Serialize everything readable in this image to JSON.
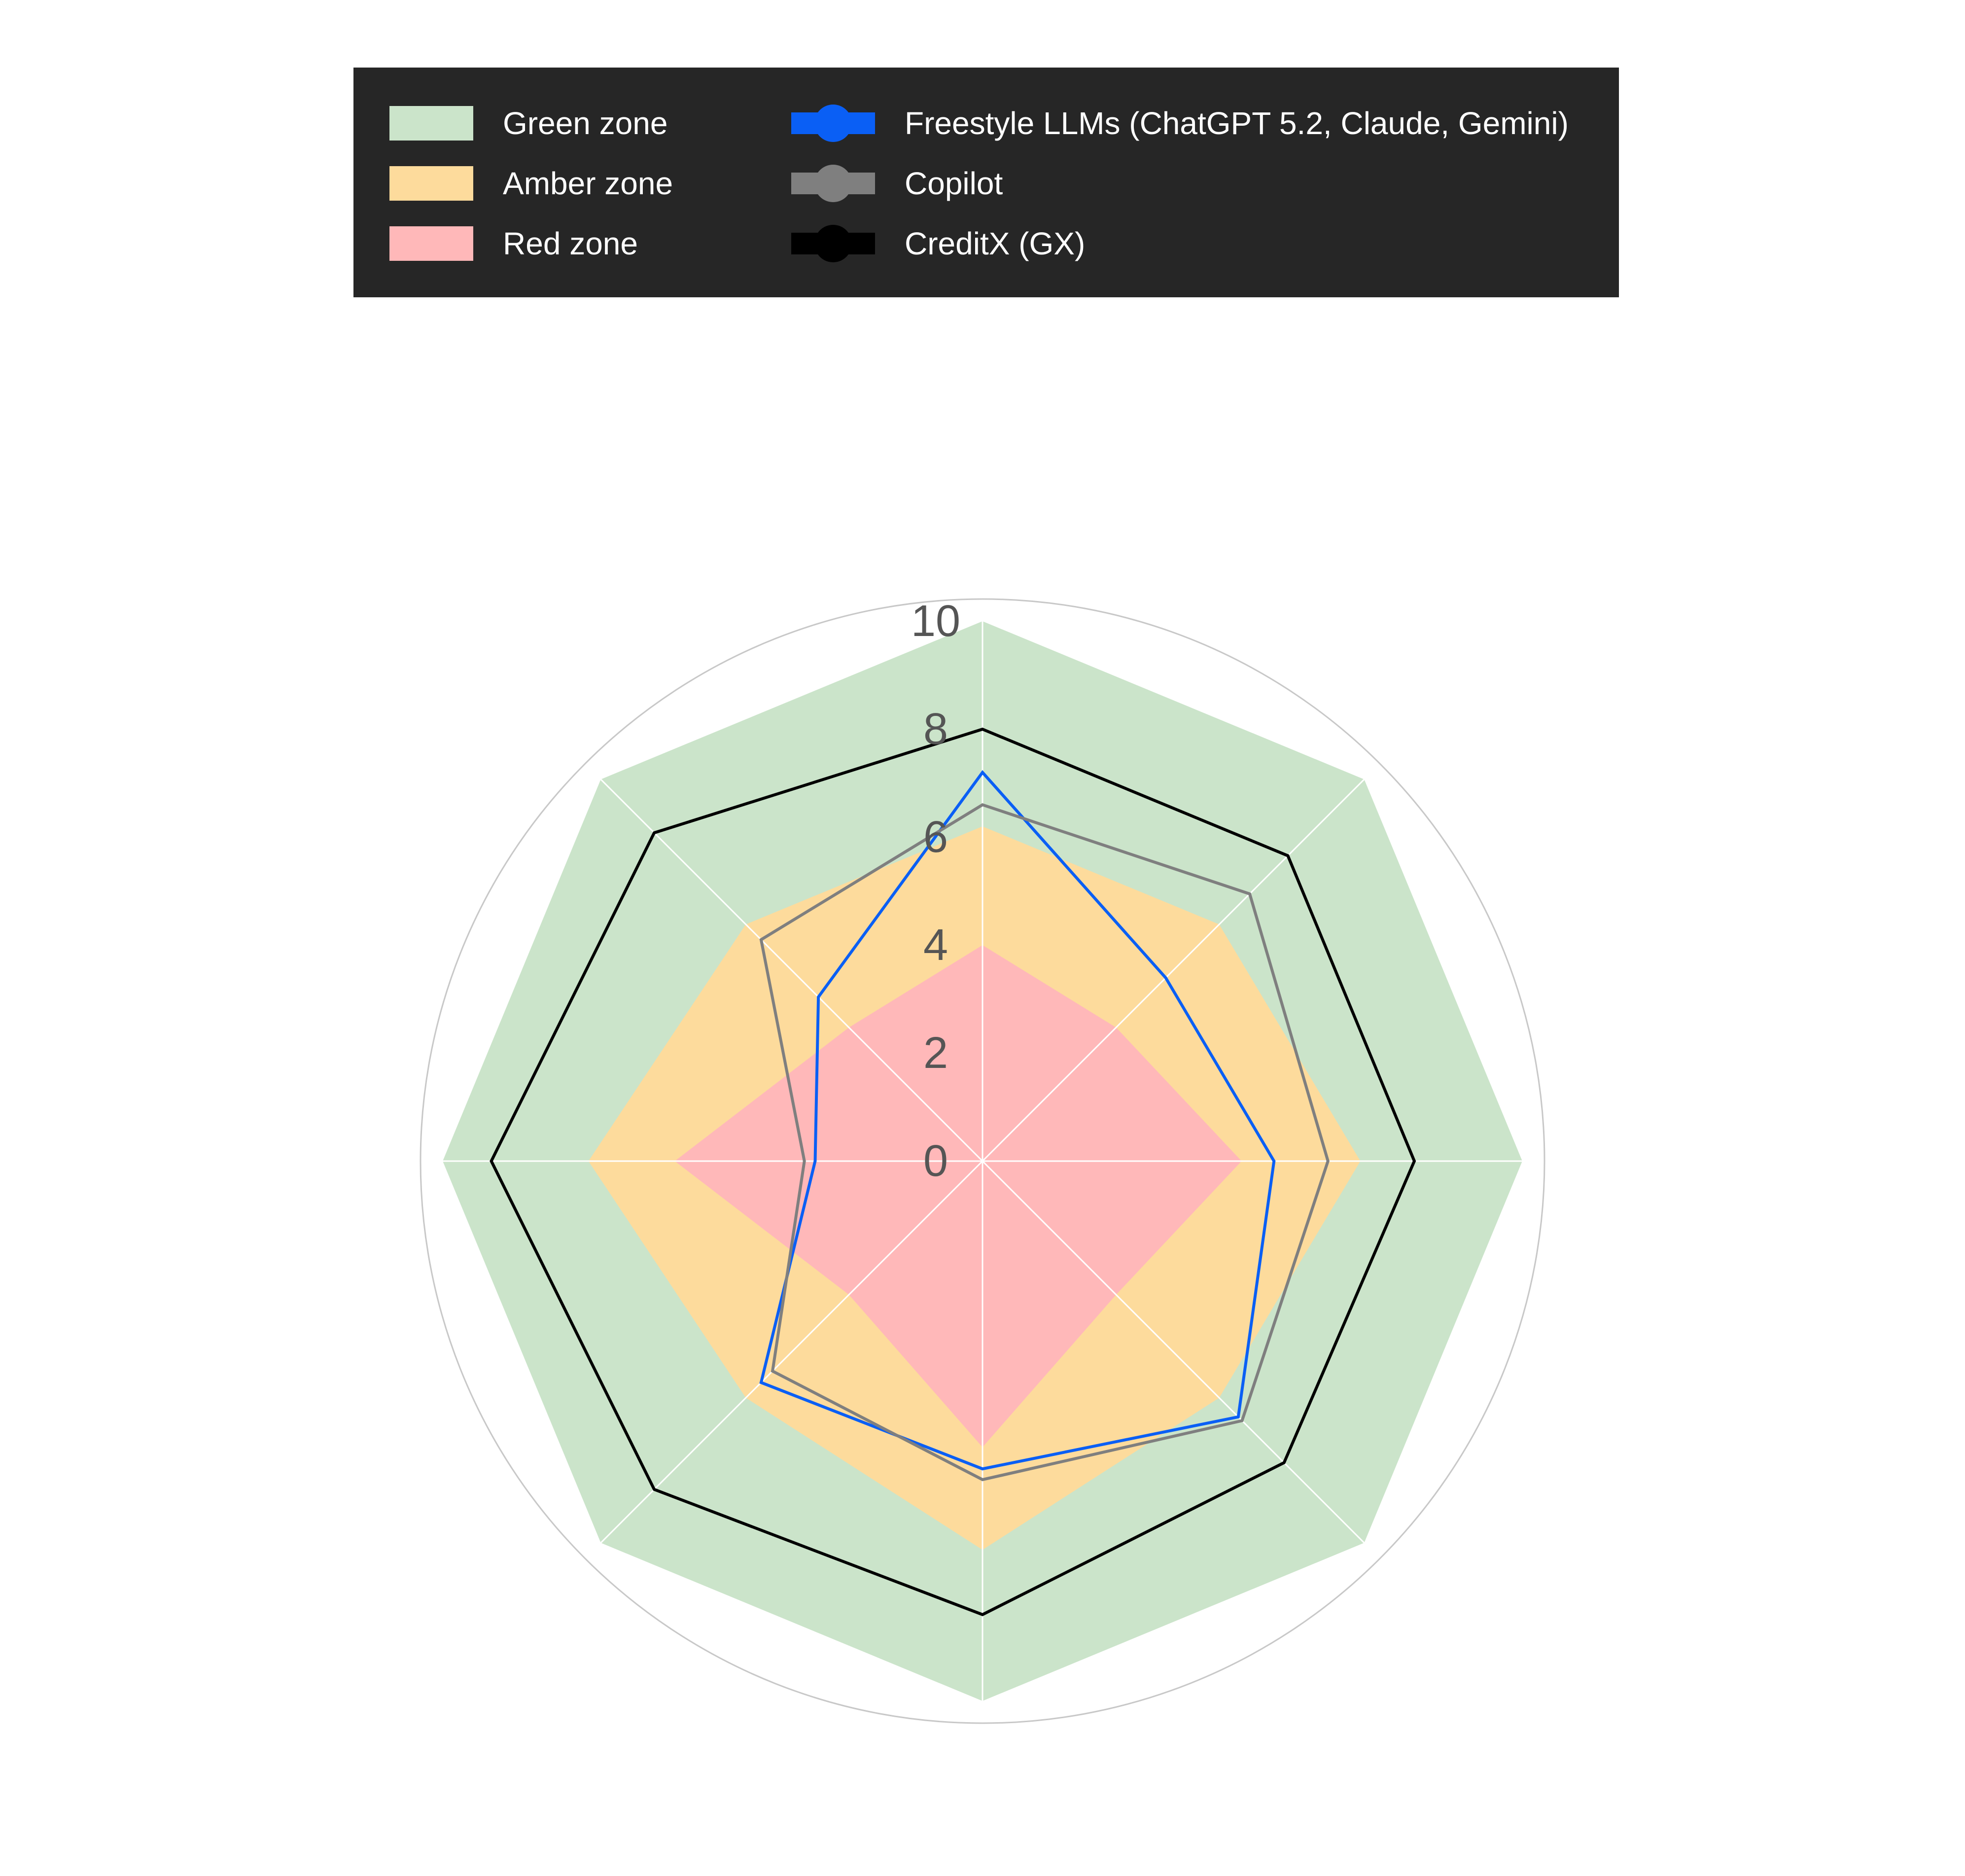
{
  "chart_data": {
    "type": "radar",
    "title": "",
    "categories": [
      "",
      "",
      "",
      "",
      "",
      "",
      "",
      ""
    ],
    "rlim": [
      0,
      10
    ],
    "rticks": [
      0,
      2,
      4,
      6,
      8,
      10
    ],
    "rtick_labels": [
      "0",
      "2",
      "4",
      "6",
      "8",
      "10"
    ],
    "grid": true,
    "legend_placement": "top",
    "zones": [
      {
        "name": "Green zone",
        "color": "#cbe4ca",
        "values": [
          10,
          10,
          10,
          10,
          10,
          10,
          10,
          10
        ]
      },
      {
        "name": "Amber zone",
        "color": "#fddb9c",
        "values": [
          6.2,
          6.2,
          7,
          6.2,
          7.2,
          6.2,
          7.3,
          6.2
        ]
      },
      {
        "name": "Red zone",
        "color": "#ffb8b9",
        "values": [
          4,
          3.5,
          4.8,
          3.5,
          5.3,
          3.5,
          5.7,
          3.5
        ]
      }
    ],
    "series": [
      {
        "name": "Freestyle LLMs (ChatGPT 5.2, Claude, Gemini)",
        "color": "#0a5ff5",
        "values": [
          7.2,
          4.8,
          5.4,
          6.7,
          5.7,
          5.8,
          3.1,
          4.3
        ]
      },
      {
        "name": "Copilot",
        "color": "#7f7f7f",
        "values": [
          6.6,
          7,
          6.4,
          6.8,
          5.9,
          5.5,
          3.3,
          5.8
        ]
      },
      {
        "name": "CreditX (GX)",
        "color": "#000000",
        "values": [
          8,
          8,
          8,
          7.9,
          8.4,
          8.6,
          9.1,
          8.6
        ]
      }
    ]
  }
}
